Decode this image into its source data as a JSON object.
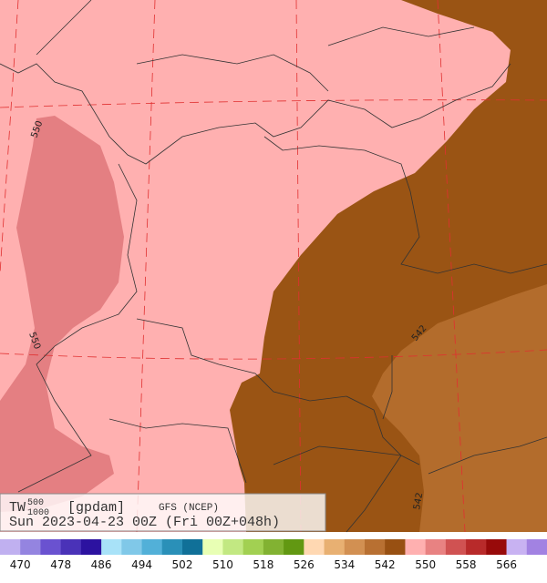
{
  "header": {
    "field": "TW",
    "superscript": "500",
    "subscript": "1000",
    "unit": "[gpdam]",
    "model": "GFS (NCEP)",
    "date": "Sun 2023-04-23 00Z (Fri 00Z+048h)"
  },
  "contour_labels": [
    "550",
    "550",
    "542",
    "542"
  ],
  "colorbar": {
    "colors": [
      "#c0b0f0",
      "#9484e0",
      "#6a52d0",
      "#4a32b8",
      "#2c12a0",
      "#a8e2f8",
      "#80c8e8",
      "#52b0d8",
      "#2a90b8",
      "#107098",
      "#e8ffb4",
      "#c2e882",
      "#a2d052",
      "#82b232",
      "#629812",
      "#ffd8b2",
      "#e8b072",
      "#d29052",
      "#b87032",
      "#985012",
      "#ffb0b0",
      "#e88282",
      "#d05252",
      "#b82a2a",
      "#980a0a",
      "#c8b2f2",
      "#a282e2"
    ],
    "labels": [
      470,
      478,
      486,
      494,
      502,
      510,
      518,
      526,
      534,
      542,
      550,
      558,
      566
    ]
  }
}
